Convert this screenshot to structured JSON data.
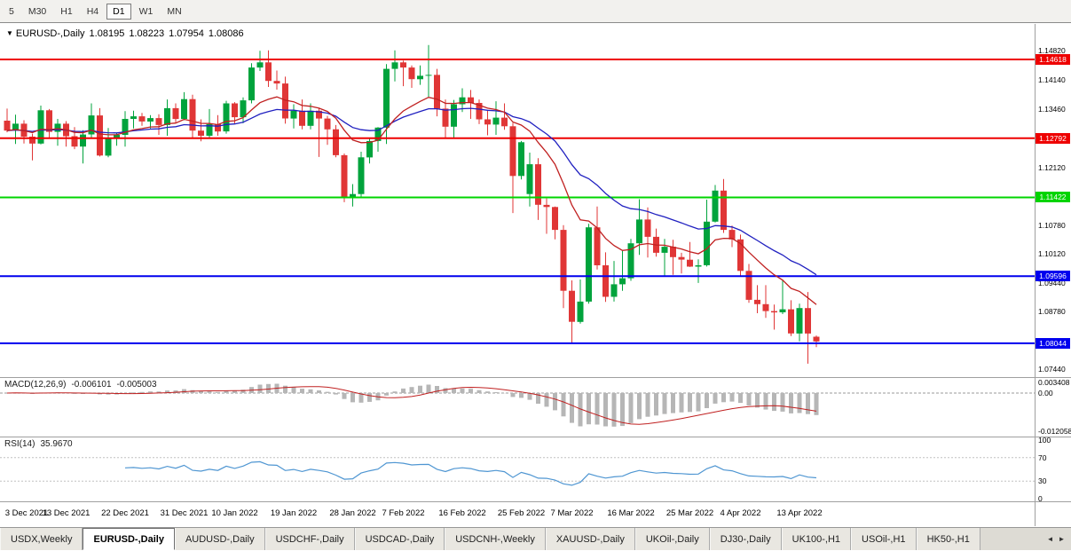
{
  "toolbar": {
    "timeframes": [
      "5",
      "M30",
      "H1",
      "H4",
      "D1",
      "W1",
      "MN"
    ],
    "selected_timeframe": "D1"
  },
  "chart": {
    "title": {
      "dropdown_icon": "▼",
      "symbol": "EURUSD-,Daily",
      "open": "1.08195",
      "high": "1.08223",
      "low": "1.07954",
      "close": "1.08086"
    },
    "price_axis_labels": [
      "1.14820",
      "1.14140",
      "1.13460",
      "1.12120",
      "1.10780",
      "1.10120",
      "1.09440",
      "1.08780",
      "1.07440"
    ],
    "hlines": [
      {
        "value": 1.14618,
        "label": "1.14618",
        "color": "#ee0000"
      },
      {
        "value": 1.12792,
        "label": "1.12792",
        "color": "#ee0000"
      },
      {
        "value": 1.11422,
        "label": "1.11422",
        "color": "#00d400"
      },
      {
        "value": 1.09596,
        "label": "1.09596",
        "color": "#0000ee"
      },
      {
        "value": 1.08044,
        "label": "1.08044",
        "color": "#0000ee"
      }
    ],
    "time_axis": [
      {
        "label": "3 Dec 2021",
        "index": 1
      },
      {
        "label": "13 Dec 2021",
        "index": 7
      },
      {
        "label": "22 Dec 2021",
        "index": 14
      },
      {
        "label": "31 Dec 2021",
        "index": 21
      },
      {
        "label": "10 Jan 2022",
        "index": 27
      },
      {
        "label": "19 Jan 2022",
        "index": 34
      },
      {
        "label": "28 Jan 2022",
        "index": 41
      },
      {
        "label": "7 Feb 2022",
        "index": 47
      },
      {
        "label": "16 Feb 2022",
        "index": 54
      },
      {
        "label": "25 Feb 2022",
        "index": 61
      },
      {
        "label": "7 Mar 2022",
        "index": 67
      },
      {
        "label": "16 Mar 2022",
        "index": 74
      },
      {
        "label": "25 Mar 2022",
        "index": 81
      },
      {
        "label": "4 Apr 2022",
        "index": 87
      },
      {
        "label": "13 Apr 2022",
        "index": 94
      }
    ],
    "colors": {
      "bull": "#00a33c",
      "bear": "#e03636",
      "ma_fast": "#c02020",
      "ma_slow": "#2020c0",
      "macd_hist": "#b6b6b6",
      "macd_signal": "#c02020",
      "rsi_line": "#4f96d2",
      "level_dash": "#c0c0c0",
      "zero_dash": "#999999"
    }
  },
  "indicators": {
    "macd": {
      "name": "MACD(12,26,9)",
      "value_main": "-0.006101",
      "value_signal": "-0.005003",
      "fast": 12,
      "slow": 26,
      "signal": 9,
      "axis_labels": [
        {
          "text": "0.003408",
          "value": 0.003408
        },
        {
          "text": "0.00",
          "value": 0
        },
        {
          "text": "-0.012058",
          "value": -0.012058
        }
      ]
    },
    "rsi": {
      "name": "RSI(14)",
      "value": "35.9670",
      "period": 14,
      "levels": [
        70,
        30
      ],
      "axis_labels": [
        {
          "text": "100",
          "value": 100
        },
        {
          "text": "70",
          "value": 70
        },
        {
          "text": "30",
          "value": 30
        },
        {
          "text": "0",
          "value": 0
        }
      ]
    }
  },
  "chart_data": {
    "type": "candlestick",
    "title": "EURUSD- Daily",
    "symbol": "EURUSD-",
    "timeframe": "Daily",
    "ylim": [
      1.0726,
      1.1544
    ],
    "columns": [
      "date",
      "open",
      "high",
      "low",
      "close"
    ],
    "candles": [
      [
        "2021-12-02",
        1.132,
        1.1348,
        1.1293,
        1.1297
      ],
      [
        "2021-12-03",
        1.1297,
        1.1334,
        1.1266,
        1.1313
      ],
      [
        "2021-12-06",
        1.1313,
        1.1321,
        1.1267,
        1.1283
      ],
      [
        "2021-12-07",
        1.1283,
        1.129,
        1.1228,
        1.1267
      ],
      [
        "2021-12-08",
        1.1267,
        1.1355,
        1.1265,
        1.1344
      ],
      [
        "2021-12-09",
        1.1344,
        1.1347,
        1.128,
        1.1294
      ],
      [
        "2021-12-10",
        1.1294,
        1.1324,
        1.1262,
        1.1313
      ],
      [
        "2021-12-13",
        1.1313,
        1.1319,
        1.126,
        1.1284
      ],
      [
        "2021-12-14",
        1.1284,
        1.1305,
        1.1254,
        1.126
      ],
      [
        "2021-12-15",
        1.126,
        1.1298,
        1.1221,
        1.1288
      ],
      [
        "2021-12-16",
        1.1288,
        1.136,
        1.1281,
        1.1332
      ],
      [
        "2021-12-17",
        1.1332,
        1.1349,
        1.1237,
        1.1239
      ],
      [
        "2021-12-20",
        1.1239,
        1.1303,
        1.1235,
        1.1278
      ],
      [
        "2021-12-21",
        1.1278,
        1.1292,
        1.1262,
        1.1287
      ],
      [
        "2021-12-22",
        1.1287,
        1.1342,
        1.126,
        1.1324
      ],
      [
        "2021-12-23",
        1.1324,
        1.1343,
        1.1302,
        1.133
      ],
      [
        "2021-12-24",
        1.133,
        1.1338,
        1.1308,
        1.1318
      ],
      [
        "2021-12-27",
        1.1318,
        1.1333,
        1.1302,
        1.1326
      ],
      [
        "2021-12-28",
        1.1326,
        1.1335,
        1.1287,
        1.131
      ],
      [
        "2021-12-29",
        1.131,
        1.1369,
        1.1285,
        1.1349
      ],
      [
        "2021-12-30",
        1.1349,
        1.136,
        1.1316,
        1.1324
      ],
      [
        "2021-12-31",
        1.1324,
        1.1386,
        1.1321,
        1.137
      ],
      [
        "2022-01-03",
        1.137,
        1.138,
        1.1279,
        1.1297
      ],
      [
        "2022-01-04",
        1.1297,
        1.1323,
        1.1272,
        1.1285
      ],
      [
        "2022-01-05",
        1.1285,
        1.1347,
        1.128,
        1.1312
      ],
      [
        "2022-01-06",
        1.1312,
        1.1333,
        1.1285,
        1.1295
      ],
      [
        "2022-01-07",
        1.1295,
        1.1366,
        1.129,
        1.136
      ],
      [
        "2022-01-10",
        1.136,
        1.1363,
        1.1313,
        1.1328
      ],
      [
        "2022-01-11",
        1.1328,
        1.1374,
        1.1314,
        1.1367
      ],
      [
        "2022-01-12",
        1.1367,
        1.1453,
        1.136,
        1.1443
      ],
      [
        "2022-01-13",
        1.1443,
        1.1482,
        1.1435,
        1.1455
      ],
      [
        "2022-01-14",
        1.1455,
        1.1483,
        1.1398,
        1.1412
      ],
      [
        "2022-01-17",
        1.1412,
        1.1436,
        1.1392,
        1.1406
      ],
      [
        "2022-01-18",
        1.1406,
        1.1422,
        1.1313,
        1.1325
      ],
      [
        "2022-01-19",
        1.1325,
        1.1358,
        1.1302,
        1.1343
      ],
      [
        "2022-01-20",
        1.1343,
        1.1369,
        1.13,
        1.1308
      ],
      [
        "2022-01-21",
        1.1308,
        1.136,
        1.13,
        1.1343
      ],
      [
        "2022-01-24",
        1.1343,
        1.1349,
        1.1236,
        1.1325
      ],
      [
        "2022-01-25",
        1.1325,
        1.1331,
        1.1264,
        1.13
      ],
      [
        "2022-01-26",
        1.13,
        1.131,
        1.1235,
        1.124
      ],
      [
        "2022-01-27",
        1.124,
        1.1244,
        1.1131,
        1.1144
      ],
      [
        "2022-01-28",
        1.1144,
        1.1173,
        1.1121,
        1.115
      ],
      [
        "2022-01-31",
        1.115,
        1.1248,
        1.1141,
        1.1235
      ],
      [
        "2022-02-01",
        1.1235,
        1.1279,
        1.1221,
        1.1273
      ],
      [
        "2022-02-02",
        1.1273,
        1.1305,
        1.1248,
        1.1304
      ],
      [
        "2022-02-03",
        1.1304,
        1.1451,
        1.1266,
        1.144
      ],
      [
        "2022-02-04",
        1.144,
        1.1483,
        1.1411,
        1.1455
      ],
      [
        "2022-02-07",
        1.1455,
        1.1459,
        1.14,
        1.1443
      ],
      [
        "2022-02-08",
        1.1443,
        1.1448,
        1.1396,
        1.1416
      ],
      [
        "2022-02-09",
        1.1416,
        1.1448,
        1.1403,
        1.1424
      ],
      [
        "2022-02-10",
        1.1424,
        1.1495,
        1.1375,
        1.1426
      ],
      [
        "2022-02-11",
        1.1426,
        1.144,
        1.133,
        1.1348
      ],
      [
        "2022-02-14",
        1.1348,
        1.1369,
        1.1278,
        1.1306
      ],
      [
        "2022-02-15",
        1.1306,
        1.1368,
        1.128,
        1.1358
      ],
      [
        "2022-02-16",
        1.1358,
        1.1395,
        1.134,
        1.1374
      ],
      [
        "2022-02-17",
        1.1374,
        1.1391,
        1.1324,
        1.1361
      ],
      [
        "2022-02-18",
        1.1361,
        1.1369,
        1.1312,
        1.1323
      ],
      [
        "2022-02-21",
        1.1323,
        1.1344,
        1.1286,
        1.1311
      ],
      [
        "2022-02-22",
        1.1311,
        1.1365,
        1.1287,
        1.1327
      ],
      [
        "2022-02-23",
        1.1327,
        1.136,
        1.1299,
        1.1307
      ],
      [
        "2022-02-24",
        1.1307,
        1.1315,
        1.1106,
        1.1192
      ],
      [
        "2022-02-25",
        1.1192,
        1.1273,
        1.1184,
        1.127
      ],
      [
        "2022-02-28",
        1.115,
        1.1246,
        1.1121,
        1.1219
      ],
      [
        "2022-03-01",
        1.1219,
        1.1233,
        1.109,
        1.1125
      ],
      [
        "2022-03-02",
        1.1125,
        1.114,
        1.1058,
        1.112
      ],
      [
        "2022-03-03",
        1.112,
        1.1121,
        1.1045,
        1.1067
      ],
      [
        "2022-03-04",
        1.1067,
        1.1078,
        1.0886,
        1.0926
      ],
      [
        "2022-03-07",
        1.0926,
        1.095,
        1.0806,
        1.0854
      ],
      [
        "2022-03-08",
        1.0854,
        1.0952,
        1.085,
        1.0901
      ],
      [
        "2022-03-09",
        1.0901,
        1.1081,
        1.0896,
        1.1073
      ],
      [
        "2022-03-10",
        1.1073,
        1.1121,
        1.0975,
        1.0985
      ],
      [
        "2022-03-11",
        1.0985,
        1.1015,
        1.09,
        1.0912
      ],
      [
        "2022-03-14",
        1.0912,
        1.0995,
        1.0901,
        1.0941
      ],
      [
        "2022-03-15",
        1.0941,
        1.102,
        1.0926,
        1.0955
      ],
      [
        "2022-03-16",
        1.0955,
        1.1046,
        1.0949,
        1.1036
      ],
      [
        "2022-03-17",
        1.1036,
        1.1138,
        1.1009,
        1.1091
      ],
      [
        "2022-03-18",
        1.1091,
        1.1119,
        1.1003,
        1.1051
      ],
      [
        "2022-03-21",
        1.1051,
        1.107,
        1.1005,
        1.1014
      ],
      [
        "2022-03-22",
        1.1014,
        1.1046,
        1.0961,
        1.1028
      ],
      [
        "2022-03-23",
        1.1028,
        1.1044,
        1.0963,
        1.1004
      ],
      [
        "2022-03-24",
        1.1004,
        1.1014,
        1.0966,
        1.0998
      ],
      [
        "2022-03-25",
        1.0998,
        1.1039,
        1.0981,
        1.0982
      ],
      [
        "2022-03-28",
        1.0982,
        1.0999,
        1.0944,
        1.0985
      ],
      [
        "2022-03-29",
        1.0985,
        1.1137,
        1.0982,
        1.1086
      ],
      [
        "2022-03-30",
        1.1086,
        1.1171,
        1.1084,
        1.1158
      ],
      [
        "2022-03-31",
        1.1158,
        1.1185,
        1.106,
        1.1067
      ],
      [
        "2022-04-01",
        1.1067,
        1.1077,
        1.1027,
        1.1045
      ],
      [
        "2022-04-04",
        1.1045,
        1.1056,
        1.096,
        1.0972
      ],
      [
        "2022-04-05",
        1.0972,
        1.0988,
        1.0898,
        1.0905
      ],
      [
        "2022-04-06",
        1.0905,
        1.0939,
        1.0874,
        1.0895
      ],
      [
        "2022-04-07",
        1.0895,
        1.0939,
        1.0863,
        1.0879
      ],
      [
        "2022-04-08",
        1.0879,
        1.0894,
        1.0836,
        1.0876
      ],
      [
        "2022-04-11",
        1.0876,
        1.095,
        1.0872,
        1.0883
      ],
      [
        "2022-04-12",
        1.0883,
        1.0904,
        1.0821,
        1.0827
      ],
      [
        "2022-04-13",
        1.0827,
        1.0896,
        1.0809,
        1.0886
      ],
      [
        "2022-04-14",
        1.0886,
        1.0923,
        1.0757,
        1.0827
      ],
      [
        "2022-04-15",
        1.08195,
        1.08223,
        1.07954,
        1.08086
      ]
    ],
    "overlays": [
      {
        "name": "EMA-12",
        "color": "#c02020"
      },
      {
        "name": "EMA-26",
        "color": "#2020c0"
      }
    ]
  },
  "tabbar": {
    "tabs": [
      "USDX,Weekly",
      "EURUSD-,Daily",
      "AUDUSD-,Daily",
      "USDCHF-,Daily",
      "USDCAD-,Daily",
      "USDCNH-,Weekly",
      "XAUUSD-,Daily",
      "UKOil-,Daily",
      "DJ30-,Daily",
      "UK100-,H1",
      "USOil-,H1",
      "HK50-,H1"
    ],
    "selected_tab": "EURUSD-,Daily",
    "scroll_left_icon": "◄",
    "scroll_right_icon": "►"
  }
}
